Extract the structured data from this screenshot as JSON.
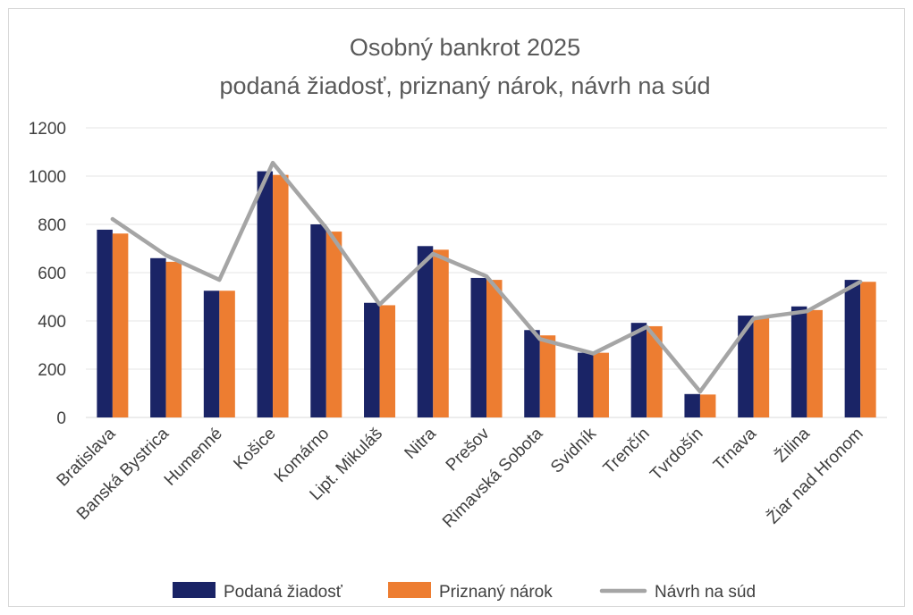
{
  "chart_data": {
    "type": "bar",
    "title": "Osobný bankrot 2025",
    "subtitle": "podaná žiadosť, priznaný nárok, návrh na súd",
    "xlabel": "",
    "ylabel": "",
    "ylim": [
      0,
      1200
    ],
    "yticks": [
      "0",
      "200",
      "400",
      "600",
      "800",
      "1000",
      "1200"
    ],
    "grid": true,
    "legend": "bottom",
    "categories": [
      "Bratislava",
      "Banská Bystrica",
      "Humenné",
      "Košice",
      "Komárno",
      "Lipt. Mikuláš",
      "Nitra",
      "Prešov",
      "Rimavská Sobota",
      "Svidník",
      "Trenčín",
      "Tvrdošín",
      "Trnava",
      "Žilina",
      "Žiar nad Hronom"
    ],
    "series": [
      {
        "name": "Podaná žiadosť",
        "type": "bar",
        "color": "#1a2466",
        "values": [
          778,
          660,
          525,
          1020,
          800,
          475,
          710,
          578,
          362,
          268,
          392,
          97,
          422,
          460,
          570
        ]
      },
      {
        "name": "Priznaný nárok",
        "type": "bar",
        "color": "#ed7d31",
        "values": [
          762,
          645,
          525,
          1005,
          770,
          465,
          695,
          570,
          340,
          268,
          378,
          95,
          415,
          445,
          562
        ]
      },
      {
        "name": "Návrh na súd",
        "type": "line",
        "color": "#a5a5a5",
        "values": [
          822,
          672,
          570,
          1055,
          785,
          468,
          678,
          585,
          325,
          265,
          375,
          107,
          410,
          440,
          562
        ]
      }
    ]
  }
}
